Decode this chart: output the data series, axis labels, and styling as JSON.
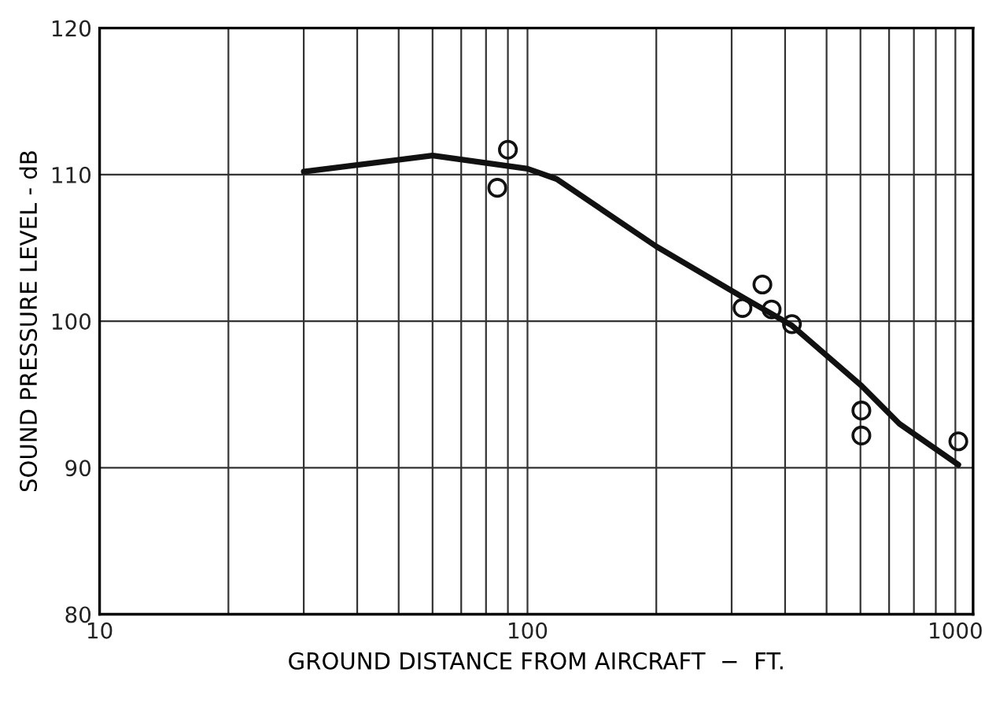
{
  "chart_data": {
    "type": "scatter",
    "xlabel": "GROUND DISTANCE FROM AIRCRAFT  −  FT.",
    "ylabel": "SOUND PRESSURE LEVEL - dB",
    "log": "x",
    "xlim": [
      10,
      1100
    ],
    "xticks": [
      10,
      100,
      1000
    ],
    "ylim": [
      80,
      120
    ],
    "yticks": [
      80,
      90,
      100,
      110,
      120
    ],
    "grid": true,
    "marker": "circle",
    "series": [
      {
        "color": "#111111",
        "x": [
          85,
          90,
          318,
          354,
          372,
          415,
          603,
          603,
          1016
        ],
        "values": [
          109.1,
          111.7,
          100.9,
          102.5,
          100.8,
          99.8,
          93.9,
          92.2,
          91.8
        ]
      },
      {
        "type": "line",
        "color": "#111111",
        "marker": "none",
        "x": [
          30,
          60,
          100,
          117,
          200,
          320,
          415,
          603,
          740,
          1016
        ],
        "values": [
          110.2,
          111.3,
          110.4,
          109.7,
          105.1,
          101.6,
          99.7,
          95.6,
          93.0,
          90.2
        ]
      }
    ]
  }
}
